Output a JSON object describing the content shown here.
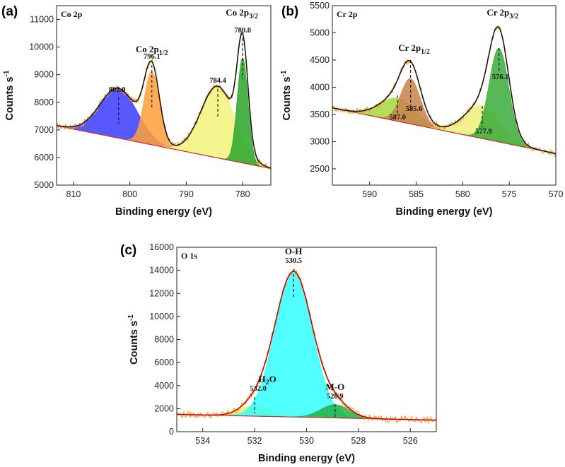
{
  "chart_data": [
    {
      "panel": "(a)",
      "type": "line",
      "corner_label": "Co 2p",
      "xlabel": "Binding energy (eV)",
      "ylabel": "Counts s",
      "ylabel_sup": "-1",
      "xlim": [
        813,
        775
      ],
      "ylim": [
        5000,
        11500
      ],
      "xticks": [
        810,
        800,
        790,
        780
      ],
      "yticks": [
        5000,
        6000,
        7000,
        8000,
        9000,
        10000,
        11000
      ],
      "baseline": [
        [
          813,
          7150
        ],
        [
          775,
          5600
        ]
      ],
      "components": [
        {
          "center": 802.0,
          "height": 1800,
          "sigma": 3.3,
          "color": "#3b3bff"
        },
        {
          "center": 796.1,
          "height": 2650,
          "sigma": 1.35,
          "color": "#ff9f3a"
        },
        {
          "center": 784.4,
          "height": 2600,
          "sigma": 3.0,
          "color": "#f1f37a"
        },
        {
          "center": 780.0,
          "height": 3800,
          "sigma": 0.95,
          "color": "#2aa52a"
        }
      ],
      "annotations": [
        {
          "x": 802.0,
          "text": "802.0"
        },
        {
          "x": 796.1,
          "text": "796.1"
        },
        {
          "x": 784.4,
          "text": "784.4"
        },
        {
          "x": 780.0,
          "text": "780.0"
        }
      ],
      "peak_labels": [
        {
          "x": 796.1,
          "main": "Co 2p",
          "sub": "1/2"
        },
        {
          "x": 780.0,
          "main": "Co 2p",
          "sub": "3/2"
        }
      ]
    },
    {
      "panel": "(b)",
      "type": "line",
      "corner_label": "Cr 2p",
      "xlabel": "Binding energy (eV)",
      "ylabel": "Counts s",
      "ylabel_sup": "-1",
      "xlim": [
        594,
        570
      ],
      "ylim": [
        2200,
        5500
      ],
      "xticks": [
        590,
        585,
        580,
        575,
        570
      ],
      "yticks": [
        2500,
        3000,
        3500,
        4000,
        4500,
        5000,
        5500
      ],
      "baseline": [
        [
          594,
          3620
        ],
        [
          570,
          2780
        ]
      ],
      "components": [
        {
          "center": 587.0,
          "height": 420,
          "sigma": 1.9,
          "color": "#a6d83a"
        },
        {
          "center": 585.6,
          "height": 830,
          "sigma": 1.05,
          "color": "#c8834a"
        },
        {
          "center": 577.9,
          "height": 600,
          "sigma": 1.9,
          "color": "#eeee7a"
        },
        {
          "center": 576.1,
          "height": 1720,
          "sigma": 1.05,
          "color": "#3aac3a"
        }
      ],
      "annotations": [
        {
          "x": 587.0,
          "text": "587.0"
        },
        {
          "x": 585.6,
          "text": "585.6"
        },
        {
          "x": 577.9,
          "text": "577.9"
        },
        {
          "x": 576.1,
          "text": "576.1"
        }
      ],
      "peak_labels": [
        {
          "x": 585.6,
          "main": "Cr 2p",
          "sub": "1/2"
        },
        {
          "x": 576.1,
          "main": "Cr 2p",
          "sub": "3/2"
        }
      ]
    },
    {
      "panel": "(c)",
      "type": "line",
      "corner_label": "O 1s",
      "xlabel": "Binding energy (eV)",
      "ylabel": "Counts s",
      "ylabel_sup": "-1",
      "xlim": [
        535,
        525
      ],
      "ylim": [
        0,
        16000
      ],
      "xticks": [
        534,
        532,
        530,
        528,
        526
      ],
      "yticks": [
        0,
        2000,
        4000,
        6000,
        8000,
        10000,
        12000,
        14000,
        16000
      ],
      "baseline": [
        [
          535,
          1500
        ],
        [
          525,
          1000
        ]
      ],
      "components": [
        {
          "center": 532.0,
          "height": 900,
          "sigma": 0.55,
          "color": "#f0f050"
        },
        {
          "center": 530.5,
          "height": 12600,
          "sigma": 0.72,
          "color": "#33ffff"
        },
        {
          "center": 528.9,
          "height": 1150,
          "sigma": 0.55,
          "color": "#22b045"
        }
      ],
      "annotations": [
        {
          "x": 532.0,
          "text": "532.0",
          "label": "H2O",
          "main": "H",
          "sub": "2",
          "tail": "O"
        },
        {
          "x": 530.5,
          "text": "530.5",
          "label": "O-H"
        },
        {
          "x": 528.9,
          "text": "528.9",
          "label": "M-O"
        }
      ]
    }
  ]
}
